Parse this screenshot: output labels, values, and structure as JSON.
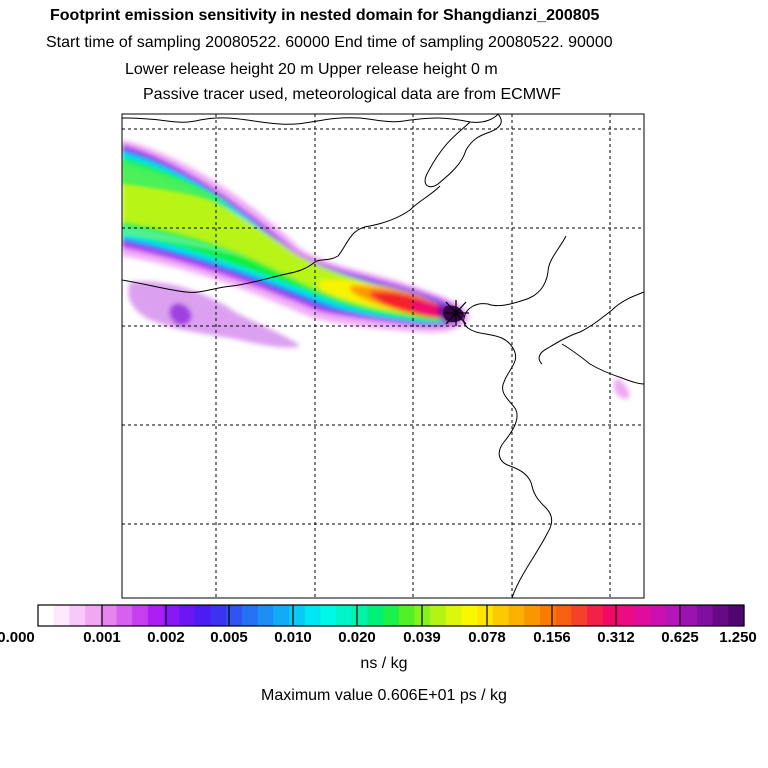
{
  "header": {
    "title": "Footprint emission sensitivity in nested domain for Shangdianzi_200805",
    "sampling": "Start time of sampling 20080522. 60000     End time of sampling 20080522. 90000",
    "release": "Lower release height   20 m          Upper release height    0 m",
    "tracer": "Passive tracer used, meteorological data are from ECMWF"
  },
  "colorbar": {
    "tick_labels": [
      "0.000",
      "0.001",
      "0.002",
      "0.005",
      "0.010",
      "0.020",
      "0.039",
      "0.078",
      "0.156",
      "0.312",
      "0.625",
      "1.250"
    ],
    "units": "ns / kg",
    "colors": [
      "#ffffff",
      "#fde8fd",
      "#f8c8f8",
      "#f0a8f3",
      "#e884f0",
      "#d860ee",
      "#c63ef0",
      "#ac1ef4",
      "#8818f5",
      "#6a16f5",
      "#4b1cf4",
      "#3a34f2",
      "#2f54f2",
      "#2472f3",
      "#1c8ff5",
      "#11acf6",
      "#09c9f5",
      "#00e6f4",
      "#00f8e8",
      "#00f5c8",
      "#00f3a8",
      "#00f078",
      "#1cf04a",
      "#52f026",
      "#86f21c",
      "#b4f414",
      "#dcf60c",
      "#f8f800",
      "#fee400",
      "#fdca00",
      "#fcb000",
      "#fa9600",
      "#f97c00",
      "#f76010",
      "#f5402a",
      "#f42048",
      "#f20866",
      "#ee0a84",
      "#e00c9e",
      "#cc10b0",
      "#b414b8",
      "#9a12b0",
      "#800e9e",
      "#680a88",
      "#500670"
    ]
  },
  "summary": {
    "max_value": "Maximum value  0.606E+01 ps / kg"
  },
  "map": {
    "receptor": "Shangdianzi",
    "grid": "on"
  }
}
